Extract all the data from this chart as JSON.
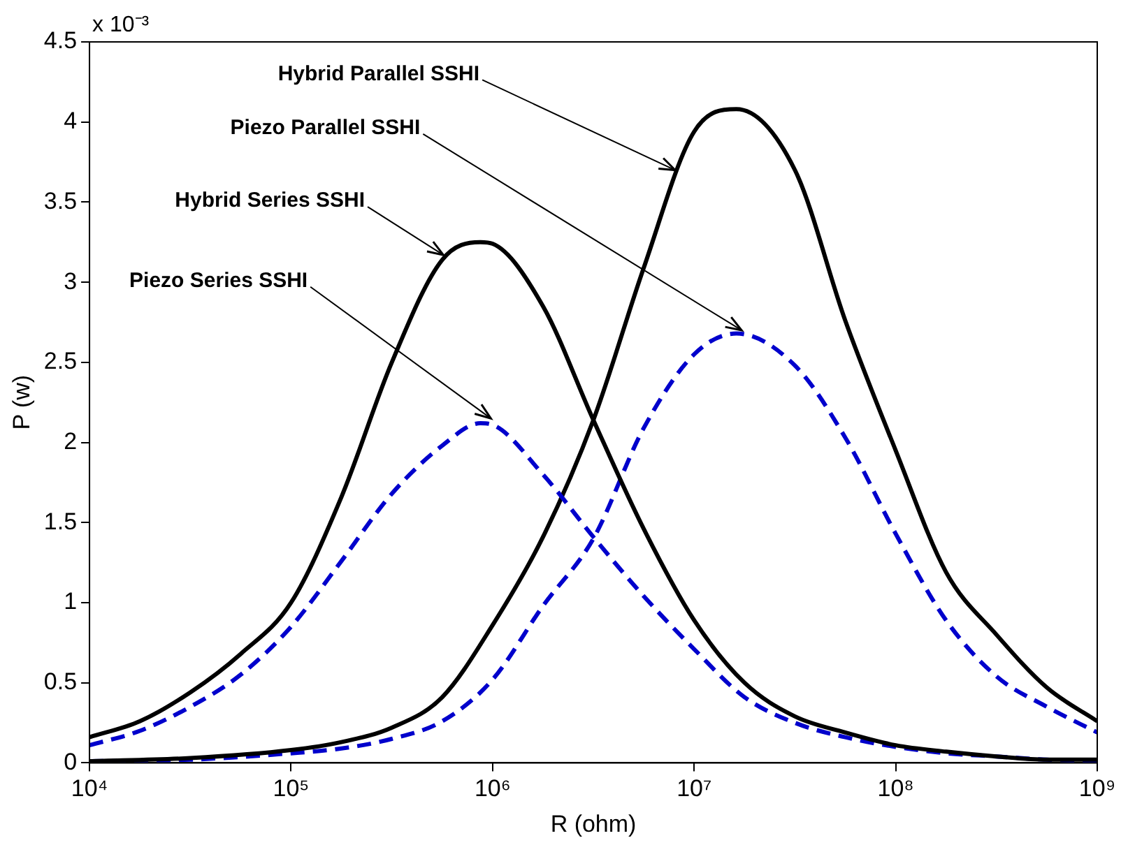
{
  "chart_data": {
    "type": "line",
    "xlabel": "R (ohm)",
    "ylabel": "P (w)",
    "log": "x",
    "grid": false,
    "legend": false,
    "marker": "none",
    "xlim": [
      10000,
      1000000000
    ],
    "xticks": [
      {
        "value": 10000,
        "label": "10⁴"
      },
      {
        "value": 100000,
        "label": "10⁵"
      },
      {
        "value": 1000000,
        "label": "10⁶"
      },
      {
        "value": 10000000,
        "label": "10⁷"
      },
      {
        "value": 100000000,
        "label": "10⁸"
      },
      {
        "value": 1000000000,
        "label": "10⁹"
      }
    ],
    "ylim": [
      0,
      4.5
    ],
    "yticks": [
      0,
      0.5,
      1,
      1.5,
      2,
      2.5,
      3,
      3.5,
      4,
      4.5
    ],
    "series": [
      {
        "color": "#000000",
        "line_style": "solid",
        "x": [
          10000,
          17783,
          31623,
          56234,
          100000,
          177828,
          316228,
          562341,
          870000,
          1000000,
          1778279,
          3162278,
          5623413,
          10000000,
          17782794,
          31622777,
          56234133,
          100000000,
          177827941,
          316227766,
          562341325,
          1000000000
        ],
        "values": [
          0.16,
          0.26,
          0.44,
          0.68,
          1.0,
          1.66,
          2.5,
          3.14,
          3.25,
          3.24,
          2.85,
          2.14,
          1.46,
          0.89,
          0.5,
          0.29,
          0.19,
          0.11,
          0.07,
          0.04,
          0.02,
          0.02
        ]
      },
      {
        "color": "#0000cc",
        "line_style": "dashed",
        "x": [
          10000,
          17783,
          31623,
          56234,
          100000,
          177828,
          316228,
          562341,
          870000,
          1000000,
          1778279,
          3162278,
          5623413,
          10000000,
          17782794,
          31622777,
          56234133,
          100000000,
          177827941,
          316227766,
          562341325,
          1000000000
        ],
        "values": [
          0.11,
          0.2,
          0.35,
          0.55,
          0.85,
          1.26,
          1.68,
          1.98,
          2.12,
          2.11,
          1.8,
          1.41,
          1.04,
          0.71,
          0.41,
          0.25,
          0.16,
          0.1,
          0.06,
          0.04,
          0.02,
          0.01
        ]
      },
      {
        "color": "#000000",
        "line_style": "solid",
        "x": [
          10000,
          31623,
          100000,
          177828,
          316228,
          562341,
          1000000,
          1778279,
          3162278,
          5623413,
          10000000,
          16200000,
          31622777,
          56234133,
          100000000,
          177827941,
          316227766,
          562341325,
          1000000000
        ],
        "values": [
          0.01,
          0.03,
          0.08,
          0.13,
          0.22,
          0.41,
          0.86,
          1.41,
          2.14,
          3.09,
          3.94,
          4.08,
          3.7,
          2.76,
          1.95,
          1.19,
          0.8,
          0.47,
          0.26
        ]
      },
      {
        "color": "#0000cc",
        "line_style": "dashed",
        "x": [
          10000,
          31623,
          100000,
          177828,
          316228,
          562341,
          1000000,
          1778279,
          3162278,
          5623413,
          10000000,
          16200000,
          31622777,
          56234133,
          100000000,
          177827941,
          316227766,
          562341325,
          1000000000
        ],
        "values": [
          0.01,
          0.02,
          0.06,
          0.09,
          0.15,
          0.26,
          0.52,
          0.98,
          1.4,
          2.09,
          2.55,
          2.68,
          2.48,
          2.03,
          1.43,
          0.89,
          0.54,
          0.35,
          0.19
        ]
      }
    ],
    "annotations": [
      {
        "text": "Hybrid Parallel SSHI",
        "x": 8050000,
        "y": 3.7
      },
      {
        "text": "Piezo Parallel SSHI",
        "x": 17200000,
        "y": 2.7
      },
      {
        "text": "Hybrid Series SSHI",
        "x": 570000,
        "y": 3.17
      },
      {
        "text": "Piezo Series SSHI",
        "x": 980000,
        "y": 2.15
      },
      "x 10⁻³"
    ]
  }
}
